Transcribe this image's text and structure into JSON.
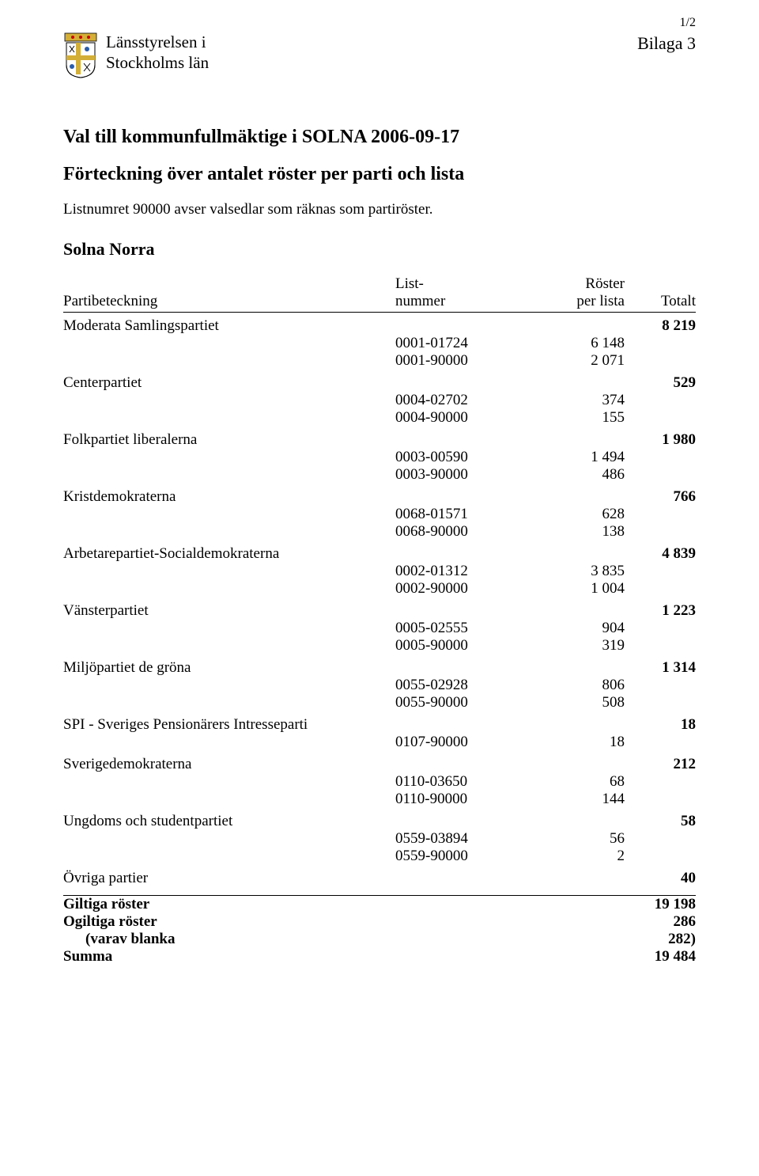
{
  "page_number": "1/2",
  "org_line1": "Länsstyrelsen i",
  "org_line2": "Stockholms län",
  "attachment": "Bilaga 3",
  "title": "Val till kommunfullmäktige i SOLNA 2006-09-17",
  "subtitle": "Förteckning över antalet röster per parti och lista",
  "note": "Listnumret 90000 avser valsedlar som räknas som partiröster.",
  "region": "Solna Norra",
  "head": {
    "party": "Partibeteckning",
    "list1": "List-",
    "list2": "nummer",
    "votes1": "Röster",
    "votes2": "per lista",
    "total": "Totalt"
  },
  "parties": [
    {
      "name": "Moderata Samlingspartiet",
      "total": "8 219",
      "lists": [
        {
          "num": "0001-01724",
          "votes": "6 148"
        },
        {
          "num": "0001-90000",
          "votes": "2 071"
        }
      ]
    },
    {
      "name": "Centerpartiet",
      "total": "529",
      "lists": [
        {
          "num": "0004-02702",
          "votes": "374"
        },
        {
          "num": "0004-90000",
          "votes": "155"
        }
      ]
    },
    {
      "name": "Folkpartiet liberalerna",
      "total": "1 980",
      "lists": [
        {
          "num": "0003-00590",
          "votes": "1 494"
        },
        {
          "num": "0003-90000",
          "votes": "486"
        }
      ]
    },
    {
      "name": "Kristdemokraterna",
      "total": "766",
      "lists": [
        {
          "num": "0068-01571",
          "votes": "628"
        },
        {
          "num": "0068-90000",
          "votes": "138"
        }
      ]
    },
    {
      "name": "Arbetarepartiet-Socialdemokraterna",
      "total": "4 839",
      "lists": [
        {
          "num": "0002-01312",
          "votes": "3 835"
        },
        {
          "num": "0002-90000",
          "votes": "1 004"
        }
      ]
    },
    {
      "name": "Vänsterpartiet",
      "total": "1 223",
      "lists": [
        {
          "num": "0005-02555",
          "votes": "904"
        },
        {
          "num": "0005-90000",
          "votes": "319"
        }
      ]
    },
    {
      "name": "Miljöpartiet de gröna",
      "total": "1 314",
      "lists": [
        {
          "num": "0055-02928",
          "votes": "806"
        },
        {
          "num": "0055-90000",
          "votes": "508"
        }
      ]
    },
    {
      "name": "SPI - Sveriges Pensionärers Intresseparti",
      "total": "18",
      "lists": [
        {
          "num": "0107-90000",
          "votes": "18"
        }
      ]
    },
    {
      "name": "Sverigedemokraterna",
      "total": "212",
      "lists": [
        {
          "num": "0110-03650",
          "votes": "68"
        },
        {
          "num": "0110-90000",
          "votes": "144"
        }
      ]
    },
    {
      "name": "Ungdoms och studentpartiet",
      "total": "58",
      "lists": [
        {
          "num": "0559-03894",
          "votes": "56"
        },
        {
          "num": "0559-90000",
          "votes": "2"
        }
      ]
    },
    {
      "name": "Övriga partier",
      "total": "40",
      "lists": []
    }
  ],
  "summary": [
    {
      "label": "Giltiga röster",
      "value": "19 198",
      "bold": true
    },
    {
      "label": "Ogiltiga röster",
      "value": "286",
      "bold": true
    },
    {
      "label": "(varav blanka",
      "value": "282)",
      "bold": true,
      "indent": true
    },
    {
      "label": "Summa",
      "value": "19 484",
      "bold": true
    }
  ]
}
